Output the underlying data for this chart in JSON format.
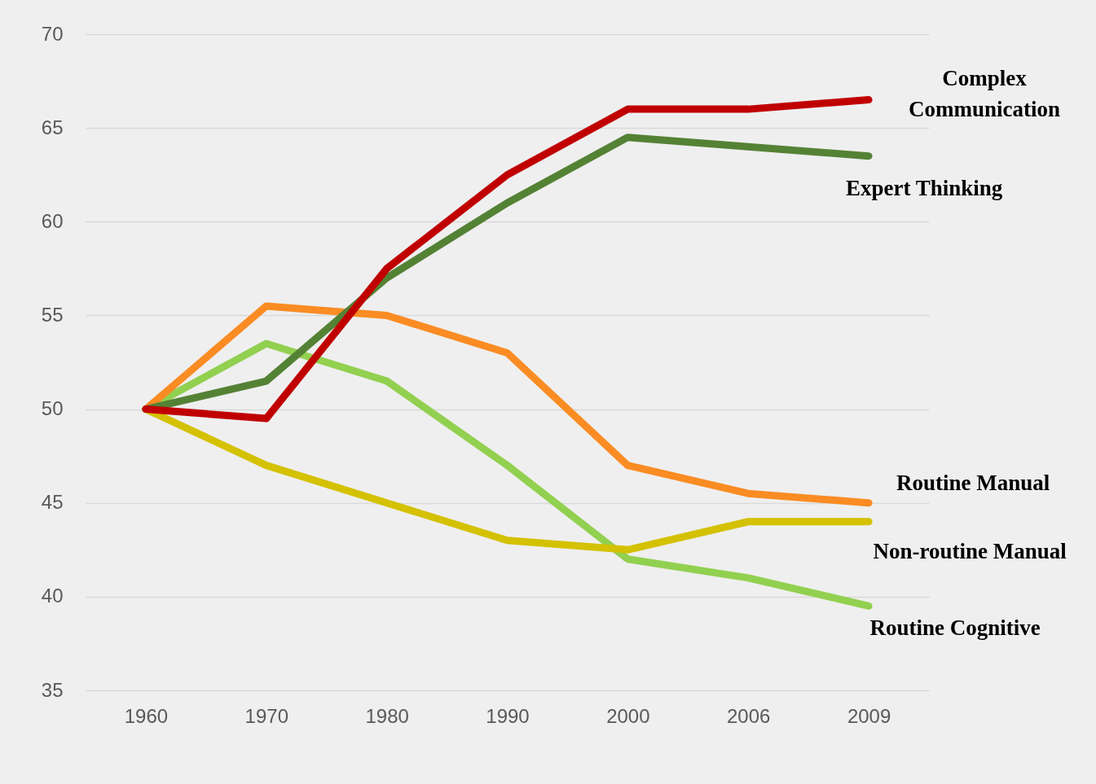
{
  "chart_data": {
    "type": "line",
    "categories": [
      "1960",
      "1970",
      "1980",
      "1990",
      "2000",
      "2006",
      "2009"
    ],
    "series": [
      {
        "name": "Complex Communication",
        "color": "#c00000",
        "values": [
          50,
          49.5,
          57.5,
          62.5,
          66,
          66,
          66.5
        ]
      },
      {
        "name": "Expert Thinking",
        "color": "#548235",
        "values": [
          50,
          51.5,
          57,
          61,
          64.5,
          64,
          63.5
        ]
      },
      {
        "name": "Routine Manual",
        "color": "#fa8c23",
        "values": [
          50,
          55.5,
          55,
          53,
          47,
          45.5,
          45
        ]
      },
      {
        "name": "Non-routine Manual",
        "color": "#d4c100",
        "values": [
          50,
          47,
          45,
          43,
          42.5,
          44,
          44
        ]
      },
      {
        "name": "Routine Cognitive",
        "color": "#92d050",
        "values": [
          50,
          53.5,
          51.5,
          47,
          42,
          41,
          39.5
        ]
      }
    ],
    "ylim": [
      35,
      70
    ],
    "yticks": [
      35,
      40,
      45,
      50,
      55,
      60,
      65,
      70
    ],
    "grid": "y",
    "legend": false,
    "marker": "none",
    "line_style": "solid"
  }
}
